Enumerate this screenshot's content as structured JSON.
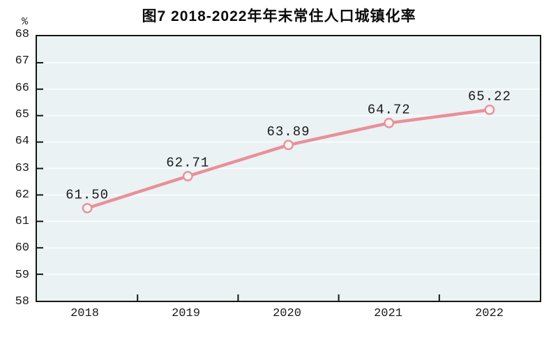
{
  "figure": {
    "title": "图7  2018-2022年年末常住人口城镇化率",
    "unit_label": "%"
  },
  "chart_data": {
    "type": "line",
    "title": "图7  2018-2022年年末常住人口城镇化率",
    "xlabel": "",
    "ylabel": "%",
    "categories": [
      "2018",
      "2019",
      "2020",
      "2021",
      "2022"
    ],
    "series": [
      {
        "values": [
          61.5,
          62.71,
          63.89,
          64.72,
          65.22
        ],
        "point_labels": [
          "61.50",
          "62.71",
          "63.89",
          "64.72",
          "65.22"
        ]
      }
    ],
    "ylim": [
      58,
      68
    ],
    "ytick_step": 1,
    "ytick_labels": [
      "58",
      "59",
      "60",
      "61",
      "62",
      "63",
      "64",
      "65",
      "66",
      "67",
      "68"
    ],
    "grid": "horizontal",
    "legend": "none",
    "colors": {
      "line": "#e9909a",
      "marker_fill": "#fdf5f4",
      "marker_stroke": "#e9909a",
      "plot_background": "#eaf2f4",
      "gridline": "#f9fcfd",
      "axis": "#151515",
      "text": "#1a1a1a",
      "page_background": "#ffffff"
    }
  }
}
